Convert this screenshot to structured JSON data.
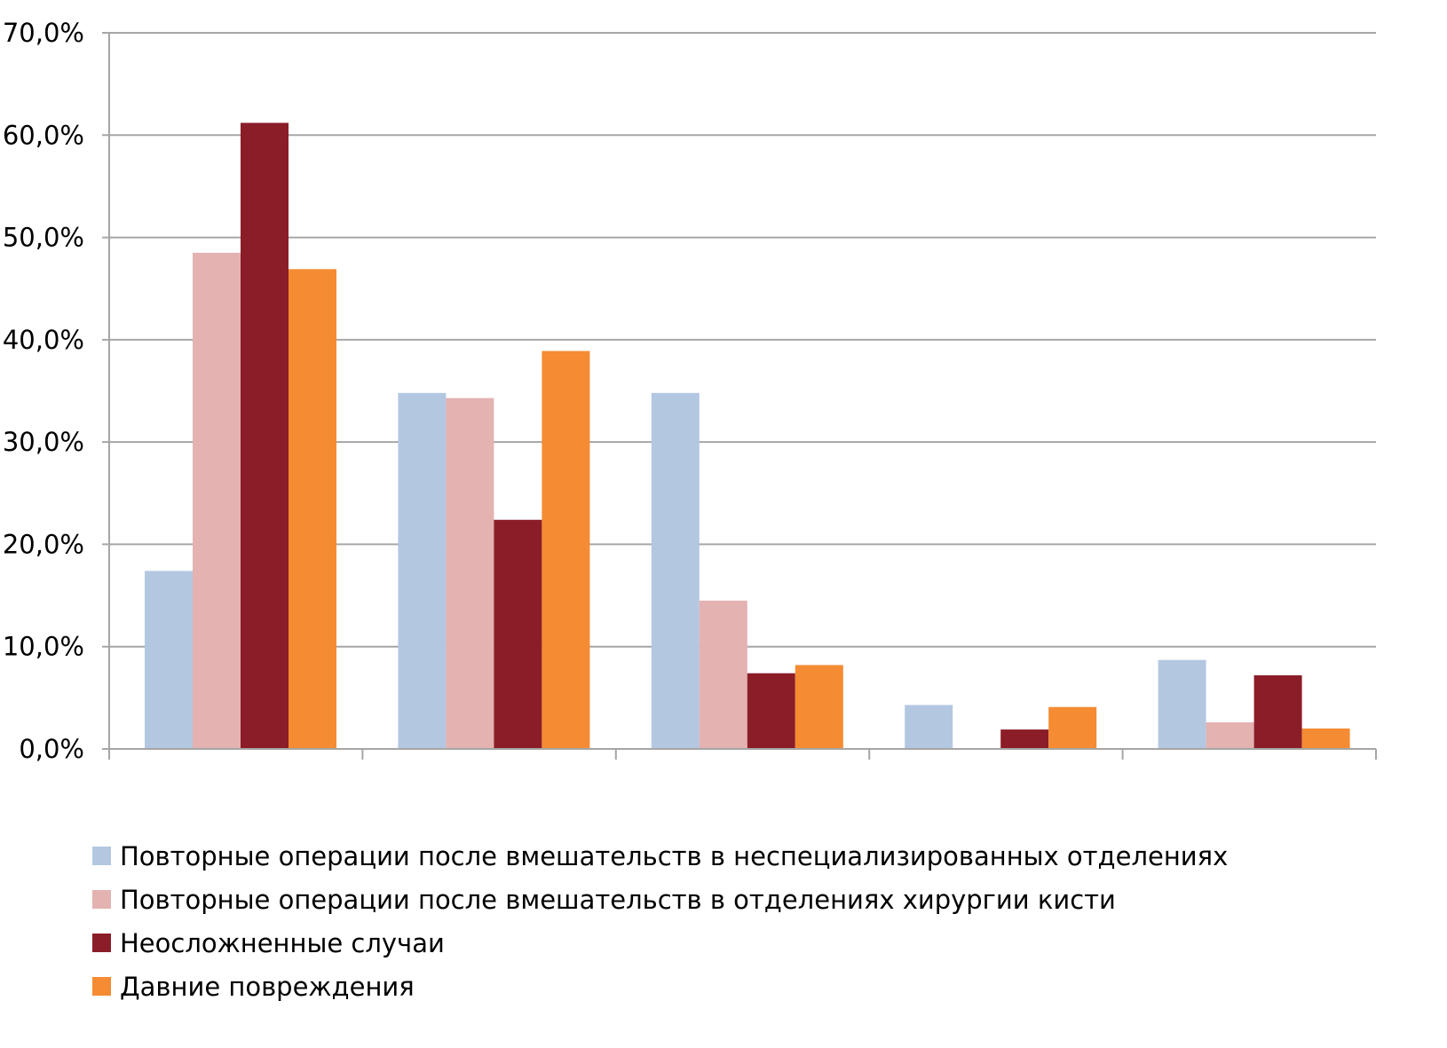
{
  "chart_data": {
    "type": "bar",
    "title": "",
    "xlabel": "",
    "ylabel": "",
    "categories": [
      "",
      "",
      "",
      "",
      ""
    ],
    "ylim": [
      0,
      70
    ],
    "ytick_values": [
      0,
      10,
      20,
      30,
      40,
      50,
      60,
      70
    ],
    "ytick_labels": [
      "0,0%",
      "10,0%",
      "20,0%",
      "30,0%",
      "40,0%",
      "50,0%",
      "60,0%",
      "70,0%"
    ],
    "grid": true,
    "legend_position": "bottom",
    "series": [
      {
        "name": "Повторные операции после вмешательств в неспециализированных отделениях",
        "color": "#b3c7e1",
        "values": [
          17.4,
          34.8,
          34.8,
          4.3,
          8.7
        ]
      },
      {
        "name": "Повторные операции после вмешательств в отделениях хирургии кисти",
        "color": "#e3b2b1",
        "values": [
          48.5,
          34.3,
          14.5,
          0,
          2.6
        ]
      },
      {
        "name": "Неосложненные случаи",
        "color": "#8b1d28",
        "values": [
          61.2,
          22.4,
          7.4,
          1.9,
          7.2
        ]
      },
      {
        "name": "Давние повреждения",
        "color": "#f58b32",
        "values": [
          46.9,
          38.9,
          8.2,
          4.1,
          2.0
        ]
      }
    ]
  }
}
